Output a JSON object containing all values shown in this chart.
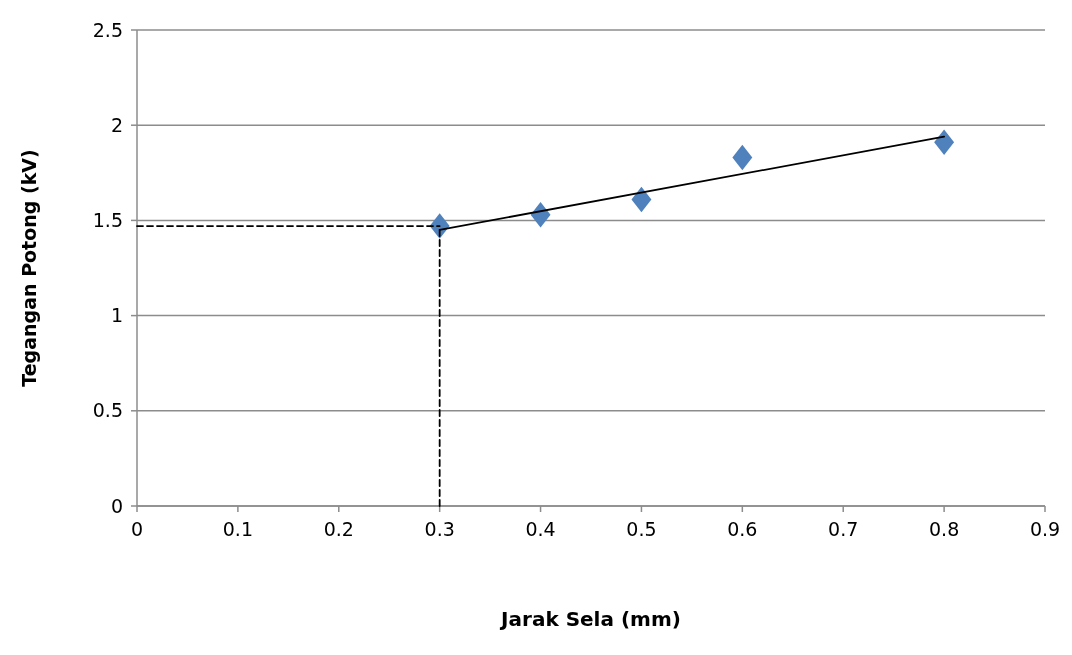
{
  "chart_data": {
    "type": "scatter",
    "xlabel": "Jarak Sela (mm)",
    "ylabel": "Tegangan Potong (kV)",
    "xlim": [
      0,
      0.9
    ],
    "ylim": [
      0,
      2.5
    ],
    "xticks": [
      0,
      0.1,
      0.2,
      0.3,
      0.4,
      0.5,
      0.6,
      0.7,
      0.8,
      0.9
    ],
    "yticks": [
      0,
      0.5,
      1,
      1.5,
      2,
      2.5
    ],
    "grid": "y",
    "series": [
      {
        "type": "line",
        "color": "#000000",
        "line_style": "dashed",
        "marker": "none",
        "x": [
          0,
          0.3
        ],
        "values": [
          1.47,
          1.47
        ]
      },
      {
        "type": "line",
        "color": "#000000",
        "line_style": "dashed",
        "marker": "none",
        "x": [
          0.3,
          0.3
        ],
        "values": [
          0,
          1.47
        ]
      },
      {
        "type": "line",
        "color": "#000000",
        "line_style": "solid",
        "marker": "none",
        "x": [
          0.3,
          0.8
        ],
        "values": [
          1.45,
          1.94
        ]
      },
      {
        "color": "#4f81bd",
        "marker": "diamond",
        "x": [
          0.3,
          0.4,
          0.5,
          0.6,
          0.8
        ],
        "values": [
          1.47,
          1.53,
          1.61,
          1.83,
          1.91
        ]
      }
    ]
  }
}
